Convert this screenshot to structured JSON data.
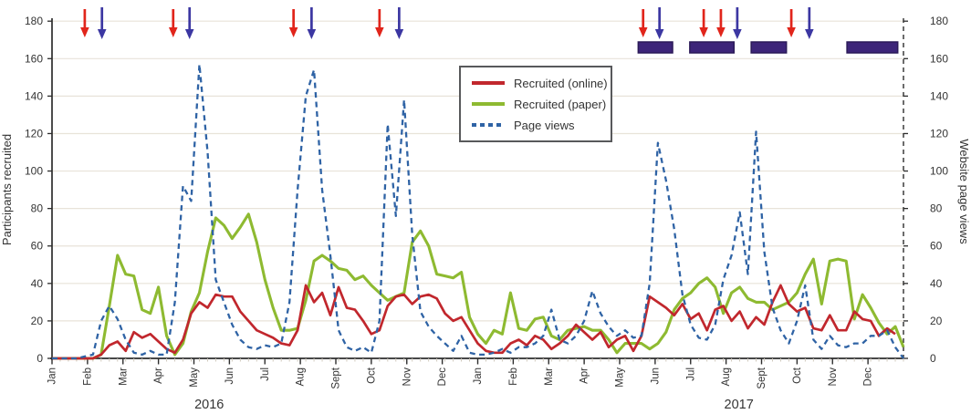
{
  "chart_data": {
    "type": "line",
    "title": "",
    "x_axis": {
      "unit": "week",
      "weeks_total": 105,
      "month_labels": [
        "Jan",
        "Feb",
        "Mar",
        "Apr",
        "May",
        "Jun",
        "Jul",
        "Aug",
        "Sept",
        "Oct",
        "Nov",
        "Dec",
        "Jan",
        "Feb",
        "Mar",
        "Apr",
        "May",
        "Jun",
        "Jul",
        "Aug",
        "Sept",
        "Oct",
        "Nov",
        "Dec"
      ],
      "year_labels": [
        {
          "text": "2016",
          "week": 19.2
        },
        {
          "text": "2017",
          "week": 83.9
        }
      ]
    },
    "y_axis_left": {
      "label": "Participants recruited",
      "min": 0,
      "max": 180,
      "step": 20
    },
    "y_axis_right": {
      "label": "Website page views",
      "min": 0,
      "max": 180,
      "step": 20
    },
    "grid": true,
    "legend_position": "top-center-inside",
    "series": [
      {
        "name": "Recruited (online)",
        "color": "#c1272d",
        "style": "solid",
        "axis": "left",
        "values": [
          0,
          0,
          0,
          0,
          0,
          0,
          2,
          7,
          9,
          4,
          14,
          11,
          13,
          9,
          5,
          3,
          10,
          24,
          30,
          27,
          34,
          33,
          33,
          25,
          20,
          15,
          13,
          11,
          8,
          7,
          15,
          39,
          30,
          35,
          23,
          38,
          27,
          26,
          20,
          13,
          15,
          28,
          33,
          34,
          29,
          33,
          34,
          32,
          24,
          20,
          22,
          15,
          8,
          4,
          3,
          3,
          8,
          10,
          7,
          12,
          10,
          5,
          8,
          12,
          18,
          14,
          10,
          14,
          6,
          10,
          12,
          4,
          12,
          33,
          30,
          27,
          23,
          29,
          21,
          24,
          15,
          26,
          28,
          20,
          25,
          16,
          22,
          18,
          30,
          39,
          29,
          25,
          27,
          16,
          15,
          23,
          15,
          15,
          25,
          21,
          20,
          12,
          16,
          13,
          null
        ]
      },
      {
        "name": "Recruited (paper)",
        "color": "#8eba31",
        "style": "solid",
        "axis": "left",
        "values": [
          0,
          0,
          0,
          0,
          0,
          0,
          2,
          28,
          55,
          45,
          44,
          26,
          24,
          38,
          12,
          2,
          8,
          25,
          35,
          57,
          75,
          71,
          64,
          70,
          77,
          62,
          42,
          27,
          15,
          15,
          16,
          31,
          52,
          55,
          52,
          48,
          47,
          42,
          44,
          39,
          35,
          31,
          33,
          35,
          62,
          68,
          60,
          45,
          44,
          43,
          46,
          22,
          13,
          8,
          15,
          13,
          35,
          16,
          15,
          21,
          22,
          12,
          10,
          15,
          16,
          17,
          15,
          15,
          10,
          3,
          8,
          8,
          8,
          5,
          8,
          14,
          26,
          32,
          35,
          40,
          43,
          38,
          24,
          35,
          38,
          32,
          30,
          30,
          26,
          28,
          30,
          35,
          45,
          53,
          29,
          52,
          53,
          52,
          21,
          34,
          27,
          19,
          13,
          17,
          6
        ]
      },
      {
        "name": "Page views",
        "color": "#2f63a5",
        "style": "dashed",
        "axis": "right",
        "values": [
          0,
          0,
          0,
          0,
          1,
          2,
          20,
          28,
          21,
          10,
          3,
          2,
          4,
          2,
          2,
          30,
          92,
          84,
          157,
          110,
          42,
          30,
          18,
          10,
          6,
          5,
          7,
          6,
          8,
          30,
          90,
          140,
          154,
          90,
          55,
          15,
          6,
          4,
          6,
          3,
          20,
          125,
          76,
          138,
          66,
          25,
          17,
          12,
          8,
          4,
          12,
          3,
          2,
          2,
          3,
          5,
          3,
          6,
          6,
          8,
          12,
          26,
          10,
          8,
          12,
          20,
          36,
          24,
          17,
          12,
          15,
          11,
          12,
          40,
          115,
          95,
          69,
          34,
          18,
          11,
          10,
          18,
          42,
          55,
          78,
          45,
          121,
          57,
          27,
          15,
          8,
          20,
          39,
          10,
          5,
          12,
          7,
          6,
          8,
          8,
          12,
          12,
          15,
          6,
          0
        ]
      }
    ],
    "annotations": {
      "arrow_colors": {
        "red": "#e1251b",
        "blue": "#3c37a2"
      },
      "arrows": [
        {
          "week": 4.0,
          "color": "red"
        },
        {
          "week": 6.1,
          "color": "blue"
        },
        {
          "week": 14.8,
          "color": "red"
        },
        {
          "week": 16.8,
          "color": "blue"
        },
        {
          "week": 29.5,
          "color": "red"
        },
        {
          "week": 31.7,
          "color": "blue"
        },
        {
          "week": 40.0,
          "color": "red"
        },
        {
          "week": 42.4,
          "color": "blue"
        },
        {
          "week": 72.2,
          "color": "red"
        },
        {
          "week": 74.2,
          "color": "blue"
        },
        {
          "week": 79.6,
          "color": "red"
        },
        {
          "week": 81.7,
          "color": "red"
        },
        {
          "week": 83.7,
          "color": "blue"
        },
        {
          "week": 90.3,
          "color": "red"
        },
        {
          "week": 92.5,
          "color": "blue"
        }
      ],
      "bars": {
        "color": "#3d2579",
        "border_color": "#2b1a58",
        "ranges_weeks": [
          [
            71.6,
            75.8
          ],
          [
            77.9,
            83.3
          ],
          [
            85.4,
            89.7
          ],
          [
            97.1,
            103.3
          ]
        ]
      }
    },
    "colors": {
      "grid": "#e8e3d9",
      "axis": "#2d2d2d",
      "minor_tick": "#cfc8bb",
      "text": "#343434",
      "legend_border": "#58595b"
    }
  }
}
